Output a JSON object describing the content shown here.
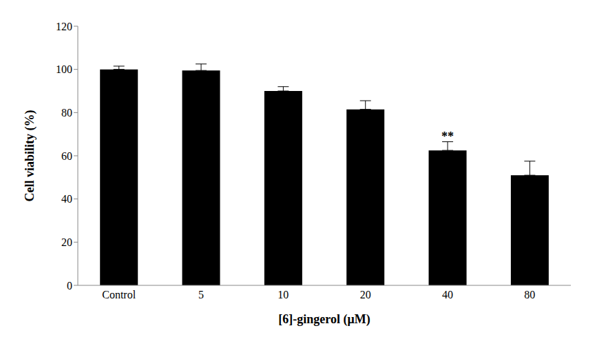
{
  "chart_data": {
    "type": "bar",
    "x_label": "[6]-gingerol (μM)",
    "y_label": "Cell viability (%)",
    "categories": [
      "Control",
      "5",
      "10",
      "20",
      "40",
      "80"
    ],
    "values": [
      100,
      99.5,
      90,
      81.5,
      62.5,
      51
    ],
    "errors": [
      1.5,
      3,
      2,
      4,
      4,
      6.5
    ],
    "color": "#000000",
    "ylim": [
      0,
      120
    ],
    "yticks": [
      0,
      20,
      40,
      60,
      80,
      100,
      120
    ],
    "grid": false,
    "annotations": [
      {
        "category": "40",
        "text": "**"
      }
    ]
  }
}
